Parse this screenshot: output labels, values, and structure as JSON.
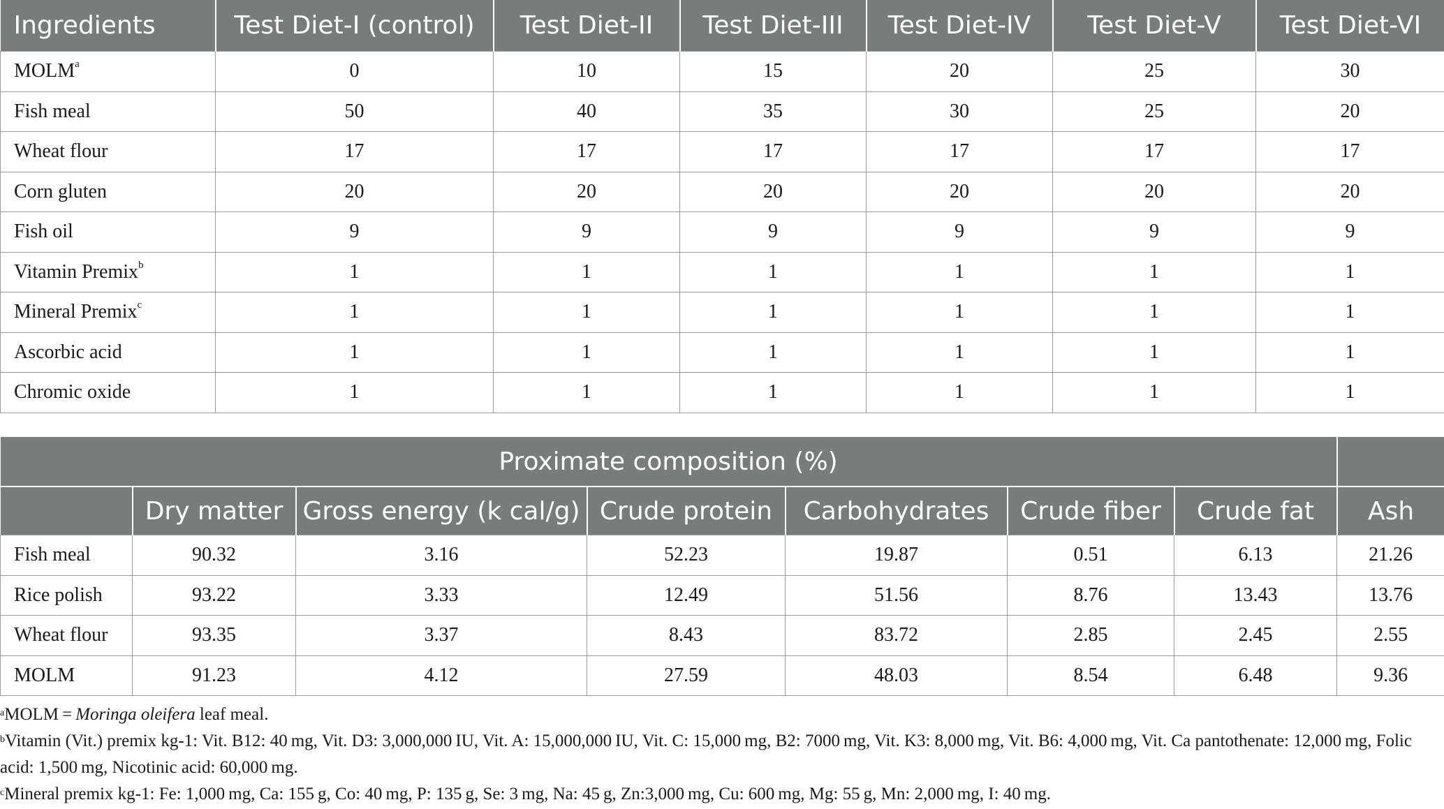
{
  "diet_table": {
    "headers": [
      "Ingredients",
      "Test Diet-I (control)",
      "Test Diet-II",
      "Test Diet-III",
      "Test Diet-IV",
      "Test Diet-V",
      "Test Diet-VI"
    ],
    "rows": [
      {
        "name": "MOLM",
        "sup": "a",
        "values": [
          "0",
          "10",
          "15",
          "20",
          "25",
          "30"
        ]
      },
      {
        "name": "Fish meal",
        "sup": "",
        "values": [
          "50",
          "40",
          "35",
          "30",
          "25",
          "20"
        ]
      },
      {
        "name": "Wheat flour",
        "sup": "",
        "values": [
          "17",
          "17",
          "17",
          "17",
          "17",
          "17"
        ]
      },
      {
        "name": "Corn gluten",
        "sup": "",
        "values": [
          "20",
          "20",
          "20",
          "20",
          "20",
          "20"
        ]
      },
      {
        "name": "Fish oil",
        "sup": "",
        "values": [
          "9",
          "9",
          "9",
          "9",
          "9",
          "9"
        ]
      },
      {
        "name": "Vitamin Premix",
        "sup": "b",
        "values": [
          "1",
          "1",
          "1",
          "1",
          "1",
          "1"
        ]
      },
      {
        "name": "Mineral Premix",
        "sup": "c",
        "values": [
          "1",
          "1",
          "1",
          "1",
          "1",
          "1"
        ]
      },
      {
        "name": "Ascorbic acid",
        "sup": "",
        "values": [
          "1",
          "1",
          "1",
          "1",
          "1",
          "1"
        ]
      },
      {
        "name": "Chromic oxide",
        "sup": "",
        "values": [
          "1",
          "1",
          "1",
          "1",
          "1",
          "1"
        ]
      }
    ]
  },
  "proximate_table": {
    "group_header": "Proximate composition (%)",
    "headers": [
      "",
      "Dry matter",
      "Gross energy (k cal/g)",
      "Crude protein",
      "Carbohydrates",
      "Crude fiber",
      "Crude fat",
      "Ash"
    ],
    "rows": [
      {
        "name": "Fish meal",
        "values": [
          "90.32",
          "3.16",
          "52.23",
          "19.87",
          "0.51",
          "6.13",
          "21.26"
        ]
      },
      {
        "name": "Rice polish",
        "values": [
          "93.22",
          "3.33",
          "12.49",
          "51.56",
          "8.76",
          "13.43",
          "13.76"
        ]
      },
      {
        "name": "Wheat flour",
        "values": [
          "93.35",
          "3.37",
          "8.43",
          "83.72",
          "2.85",
          "2.45",
          "2.55"
        ]
      },
      {
        "name": "MOLM",
        "values": [
          "91.23",
          "4.12",
          "27.59",
          "48.03",
          "8.54",
          "6.48",
          "9.36"
        ]
      }
    ]
  },
  "footnotes": {
    "a": {
      "mark": "a",
      "pre": "MOLM = ",
      "italic": "Moringa oleifera",
      "post": " leaf meal."
    },
    "b": {
      "mark": "b",
      "text": "Vitamin (Vit.) premix kg-1: Vit. B12: 40 mg, Vit. D3: 3,000,000 IU, Vit. A: 15,000,000 IU, Vit. C: 15,000 mg, B2: 7000 mg, Vit. K3: 8,000 mg, Vit. B6: 4,000 mg, Vit. Ca pantothenate: 12,000 mg, Folic acid: 1,500 mg, Nicotinic acid: 60,000 mg."
    },
    "c": {
      "mark": "c",
      "text": "Mineral premix kg-1: Fe: 1,000 mg, Ca: 155 g, Co: 40 mg, P: 135 g, Se: 3 mg, Na: 45 g, Zn:3,000 mg, Cu: 600 mg, Mg: 55 g, Mn: 2,000 mg, I: 40 mg."
    }
  }
}
